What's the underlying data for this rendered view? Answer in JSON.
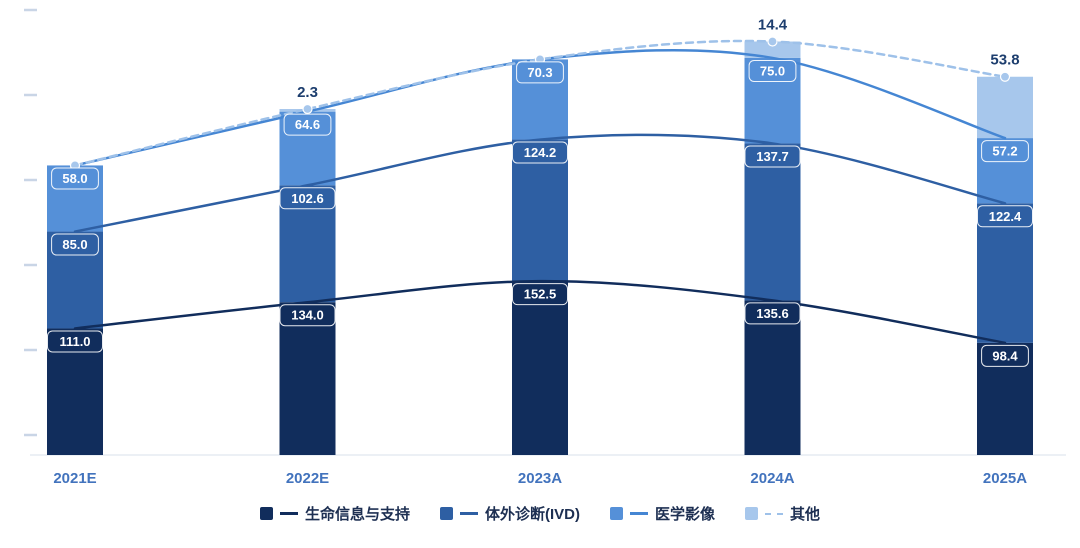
{
  "chart_data": {
    "type": "bar",
    "stacked": true,
    "title": "",
    "xlabel": "",
    "ylabel": "",
    "ylim": [
      0,
      400
    ],
    "grid": false,
    "legend_position": "bottom",
    "categories": [
      "2021E",
      "2022E",
      "2023A",
      "2024A",
      "2025A"
    ],
    "series": [
      {
        "name": "生命信息与支持",
        "color": "#112D5C",
        "line_color": "#112D5C",
        "line_style": "solid",
        "values": [
          111.0,
          134.0,
          152.5,
          135.6,
          98.4
        ],
        "labels": [
          "111.0",
          "134.0",
          "152.5",
          "135.6",
          "98.4"
        ],
        "label_style": "badge"
      },
      {
        "name": "体外诊断(IVD)",
        "color": "#2E5FA3",
        "line_color": "#2E5FA3",
        "line_style": "solid",
        "values": [
          85.0,
          102.6,
          124.2,
          137.7,
          122.4
        ],
        "labels": [
          "85.0",
          "102.6",
          "124.2",
          "137.7",
          "122.4"
        ],
        "label_style": "badge"
      },
      {
        "name": "医学影像",
        "color": "#5590D8",
        "line_color": "#4586D3",
        "line_style": "solid",
        "values": [
          58.0,
          64.6,
          70.3,
          75.0,
          57.2
        ],
        "labels": [
          "58.0",
          "64.6",
          "70.3",
          "75.0",
          "57.2"
        ],
        "label_style": "badge"
      },
      {
        "name": "其他",
        "color": "#A7C7EC",
        "line_color": "#9EC1E9",
        "line_style": "dashed",
        "values": [
          0,
          2.3,
          0,
          14.4,
          53.8
        ],
        "labels": [
          "",
          "2.3",
          "",
          "14.4",
          "53.8"
        ],
        "label_style": "above"
      }
    ],
    "totals": [
      254.0,
      303.5,
      347.0,
      362.7,
      331.8
    ]
  },
  "colors": {
    "category_label": "#4273BD",
    "top_label": "#1D3E6E",
    "tick": "#C9D5E6",
    "baseline": "#E6EBF2",
    "badge_text": "#FFFFFF"
  },
  "legend": {
    "items": [
      {
        "label": "生命信息与支持"
      },
      {
        "label": "体外诊断(IVD)"
      },
      {
        "label": "医学影像"
      },
      {
        "label": "其他"
      }
    ]
  }
}
